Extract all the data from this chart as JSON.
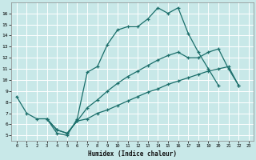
{
  "bg_color": "#c8e8e8",
  "grid_color": "#ffffff",
  "line_color": "#1a6e6a",
  "xlabel": "Humidex (Indice chaleur)",
  "xlim": [
    -0.5,
    23.5
  ],
  "ylim": [
    4.5,
    17.0
  ],
  "xticks": [
    0,
    1,
    2,
    3,
    4,
    5,
    6,
    7,
    8,
    9,
    10,
    11,
    12,
    13,
    14,
    15,
    16,
    17,
    18,
    19,
    20,
    21,
    22,
    23
  ],
  "yticks": [
    5,
    6,
    7,
    8,
    9,
    10,
    11,
    12,
    13,
    14,
    15,
    16
  ],
  "curve1_x": [
    0,
    1,
    2,
    3,
    4,
    5,
    6,
    7,
    8,
    9,
    10,
    11,
    12,
    13,
    14,
    15,
    16,
    17,
    18,
    19,
    20
  ],
  "curve1_y": [
    8.5,
    7.0,
    6.5,
    6.5,
    5.2,
    5.0,
    6.5,
    10.7,
    11.2,
    13.2,
    14.5,
    14.8,
    14.8,
    15.5,
    16.5,
    16.0,
    16.5,
    14.2,
    12.5,
    11.0,
    9.5
  ],
  "curve2_x": [
    3,
    4,
    5,
    6,
    7,
    8,
    9,
    10,
    11,
    12,
    13,
    14,
    15,
    16,
    17,
    18,
    19,
    20,
    21,
    22
  ],
  "curve2_y": [
    6.5,
    5.5,
    5.2,
    6.3,
    7.5,
    8.2,
    9.0,
    9.7,
    10.3,
    10.8,
    11.3,
    11.8,
    12.2,
    12.5,
    12.0,
    12.0,
    12.5,
    12.8,
    11.0,
    9.5
  ],
  "curve3_x": [
    3,
    4,
    5,
    6,
    7,
    8,
    9,
    10,
    11,
    12,
    13,
    14,
    15,
    16,
    17,
    18,
    19,
    20,
    21,
    22
  ],
  "curve3_y": [
    6.5,
    5.5,
    5.2,
    6.3,
    6.5,
    7.0,
    7.3,
    7.7,
    8.1,
    8.5,
    8.9,
    9.2,
    9.6,
    9.9,
    10.2,
    10.5,
    10.8,
    11.0,
    11.2,
    9.5
  ]
}
